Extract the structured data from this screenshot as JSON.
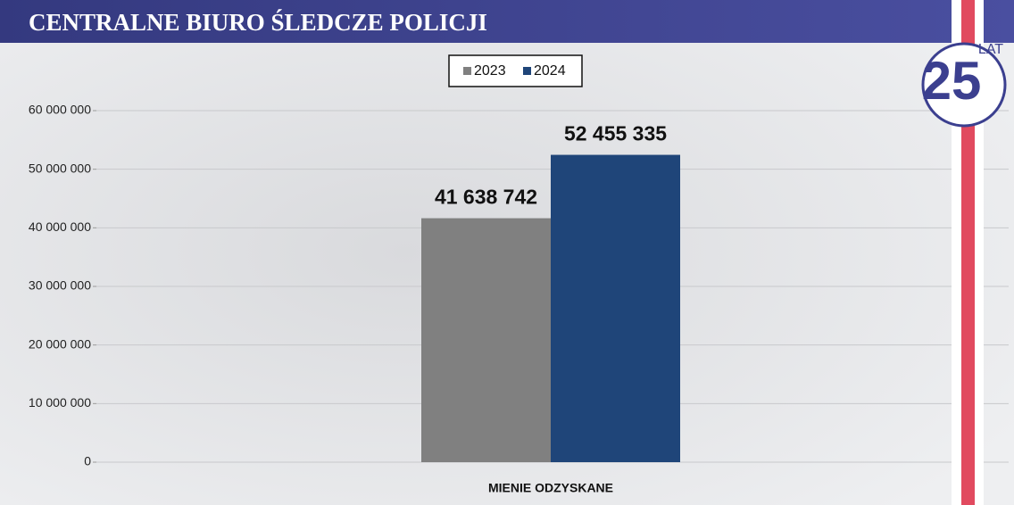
{
  "chart_data": {
    "type": "bar",
    "title": "CENTRALNE BIURO ŚLEDCZE POLICJI",
    "logo": {
      "number": "25",
      "text": "LAT"
    },
    "categories": [
      "MIENIE ODZYSKANE"
    ],
    "series": [
      {
        "name": "2023",
        "color": "#808080",
        "values": [
          41638742
        ],
        "value_labels": [
          "41 638 742"
        ]
      },
      {
        "name": "2024",
        "color": "#1f4579",
        "values": [
          52455335
        ],
        "value_labels": [
          "52 455 335"
        ]
      }
    ],
    "ylim": [
      0,
      60000000
    ],
    "yticks": [
      0,
      {
        "value": 10000000,
        "label": "10 000 000"
      },
      {
        "value": 20000000,
        "label": "20 000 000"
      },
      {
        "value": 30000000,
        "label": "30 000 000"
      },
      {
        "value": 40000000,
        "label": "40 000 000"
      },
      {
        "value": 50000000,
        "label": "50 000 000"
      },
      {
        "value": 60000000,
        "label": "60 000 000"
      }
    ],
    "grid": true,
    "legend": "top"
  }
}
